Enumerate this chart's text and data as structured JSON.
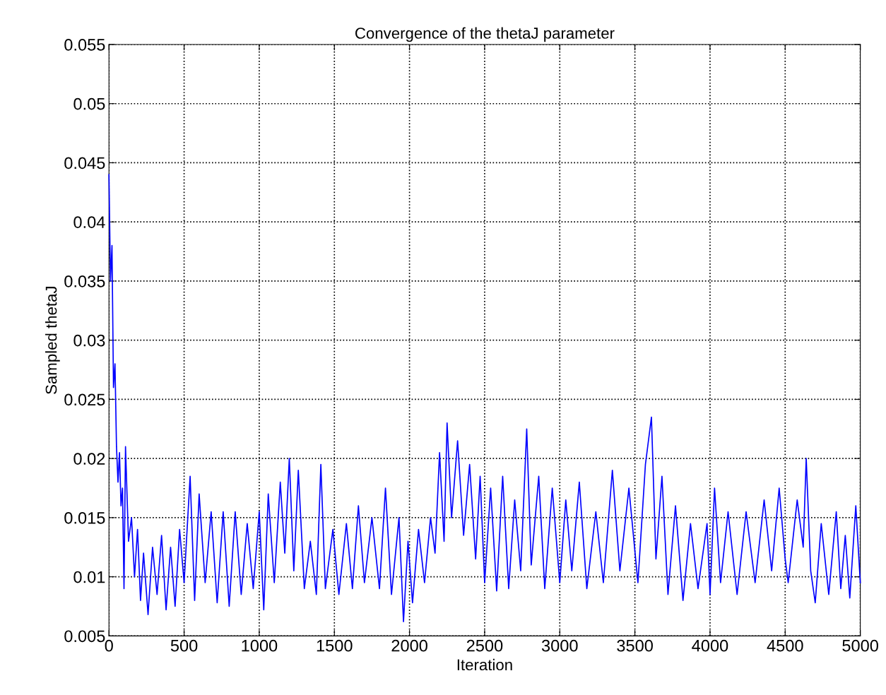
{
  "chart_data": {
    "type": "line",
    "title": "Convergence of the thetaJ parameter",
    "xlabel": "Iteration",
    "ylabel": "Sampled thetaJ",
    "x": [
      0,
      10,
      20,
      30,
      40,
      50,
      60,
      70,
      80,
      90,
      100,
      110,
      130,
      150,
      170,
      190,
      210,
      230,
      260,
      290,
      320,
      350,
      380,
      410,
      440,
      470,
      500,
      540,
      570,
      600,
      640,
      680,
      720,
      760,
      800,
      840,
      880,
      920,
      960,
      1000,
      1030,
      1060,
      1100,
      1140,
      1170,
      1200,
      1230,
      1260,
      1300,
      1340,
      1380,
      1410,
      1440,
      1490,
      1530,
      1580,
      1620,
      1660,
      1700,
      1750,
      1800,
      1840,
      1880,
      1930,
      1960,
      1990,
      2020,
      2060,
      2100,
      2140,
      2170,
      2200,
      2230,
      2250,
      2280,
      2320,
      2360,
      2400,
      2440,
      2470,
      2500,
      2540,
      2580,
      2620,
      2660,
      2700,
      2740,
      2780,
      2810,
      2860,
      2900,
      2950,
      3000,
      3040,
      3080,
      3130,
      3180,
      3240,
      3290,
      3350,
      3400,
      3460,
      3520,
      3570,
      3610,
      3640,
      3680,
      3720,
      3770,
      3820,
      3870,
      3920,
      3980,
      4000,
      4030,
      4070,
      4120,
      4180,
      4240,
      4300,
      4360,
      4410,
      4460,
      4500,
      4520,
      4580,
      4620,
      4640,
      4670,
      4700,
      4740,
      4790,
      4840,
      4870,
      4900,
      4930,
      4970,
      5000
    ],
    "series": [
      {
        "color": "#0000ff",
        "values": [
          0.044,
          0.035,
          0.038,
          0.026,
          0.028,
          0.021,
          0.018,
          0.0205,
          0.016,
          0.0175,
          0.009,
          0.021,
          0.013,
          0.015,
          0.01,
          0.014,
          0.008,
          0.012,
          0.0068,
          0.0125,
          0.0085,
          0.0135,
          0.0072,
          0.0125,
          0.0075,
          0.014,
          0.0095,
          0.0185,
          0.008,
          0.017,
          0.0095,
          0.0155,
          0.0078,
          0.0155,
          0.0075,
          0.0155,
          0.0085,
          0.0145,
          0.009,
          0.0155,
          0.0072,
          0.017,
          0.0095,
          0.018,
          0.012,
          0.02,
          0.0105,
          0.019,
          0.009,
          0.013,
          0.0085,
          0.0195,
          0.009,
          0.014,
          0.0085,
          0.0145,
          0.009,
          0.016,
          0.0095,
          0.015,
          0.009,
          0.0175,
          0.0085,
          0.015,
          0.0062,
          0.013,
          0.0078,
          0.014,
          0.0095,
          0.015,
          0.012,
          0.0205,
          0.013,
          0.023,
          0.015,
          0.0215,
          0.0135,
          0.0195,
          0.0115,
          0.0185,
          0.0095,
          0.0175,
          0.0088,
          0.0185,
          0.009,
          0.0165,
          0.0105,
          0.0225,
          0.011,
          0.0185,
          0.009,
          0.0175,
          0.0095,
          0.0165,
          0.0105,
          0.018,
          0.009,
          0.0155,
          0.0095,
          0.019,
          0.0105,
          0.0175,
          0.0095,
          0.0195,
          0.0235,
          0.0115,
          0.0185,
          0.0085,
          0.016,
          0.008,
          0.0145,
          0.009,
          0.0145,
          0.0085,
          0.0175,
          0.0095,
          0.0155,
          0.0085,
          0.0155,
          0.0095,
          0.0165,
          0.0105,
          0.0175,
          0.0115,
          0.0095,
          0.0165,
          0.0125,
          0.02,
          0.0105,
          0.0078,
          0.0145,
          0.0085,
          0.0155,
          0.009,
          0.0135,
          0.0082,
          0.016,
          0.0095
        ]
      }
    ],
    "xlim": [
      0,
      5000
    ],
    "xticks": [
      0,
      500,
      1000,
      1500,
      2000,
      2500,
      3000,
      3500,
      4000,
      4500,
      5000
    ],
    "ylim": [
      0.005,
      0.055
    ],
    "yticks": [
      0.005,
      0.01,
      0.015,
      0.02,
      0.025,
      0.03,
      0.035,
      0.04,
      0.045,
      0.05,
      0.055
    ],
    "grid": true,
    "line_style": "solid",
    "marker": "none"
  }
}
